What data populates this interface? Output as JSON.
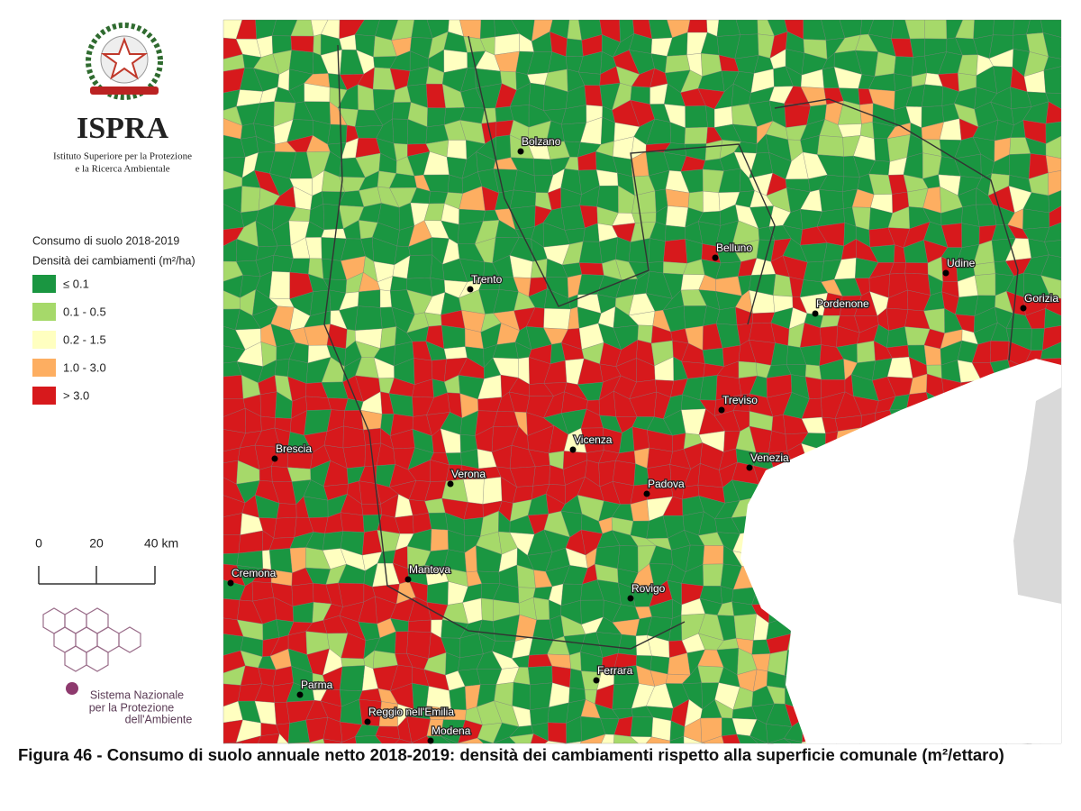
{
  "header": {
    "org": "ISPRA",
    "org_full_1": "Istituto Superiore per la Protezione",
    "org_full_2": "e la Ricerca Ambientale"
  },
  "legend": {
    "title_1": "Consumo di suolo 2018-2019",
    "title_2": "Densità dei cambiamenti (m²/ha)",
    "items": [
      {
        "label": "≤ 0.1",
        "color": "#1a9641"
      },
      {
        "label": "0.1 - 0.5",
        "color": "#a6d96a"
      },
      {
        "label": "0.2 - 1.5",
        "color": "#ffffc0"
      },
      {
        "label": "1.0 - 3.0",
        "color": "#fdae61"
      },
      {
        "label": "> 3.0",
        "color": "#d7191c"
      }
    ]
  },
  "scale_bar": {
    "labels": [
      "0",
      "20",
      "40 km"
    ]
  },
  "cities": [
    {
      "name": "Bolzano"
    },
    {
      "name": "Trento"
    },
    {
      "name": "Belluno"
    },
    {
      "name": "Udine"
    },
    {
      "name": "Pordenone"
    },
    {
      "name": "Gorizia"
    },
    {
      "name": "Treviso"
    },
    {
      "name": "Brescia"
    },
    {
      "name": "Vicenza"
    },
    {
      "name": "Venezia"
    },
    {
      "name": "Verona"
    },
    {
      "name": "Padova"
    },
    {
      "name": "Cremona"
    },
    {
      "name": "Mantova"
    },
    {
      "name": "Rovigo"
    },
    {
      "name": "Ferrara"
    },
    {
      "name": "Parma"
    },
    {
      "name": "Reggio nell'Emilia"
    },
    {
      "name": "Modena"
    }
  ],
  "footer_logo": {
    "line_1": "Sistema Nazionale",
    "line_2": "per la Protezione",
    "line_3": "dell'Ambiente"
  },
  "caption": "Figura 46 - Consumo di suolo annuale netto 2018-2019: densità dei cambiamenti rispetto alla superficie comunale (m²/ettaro)"
}
